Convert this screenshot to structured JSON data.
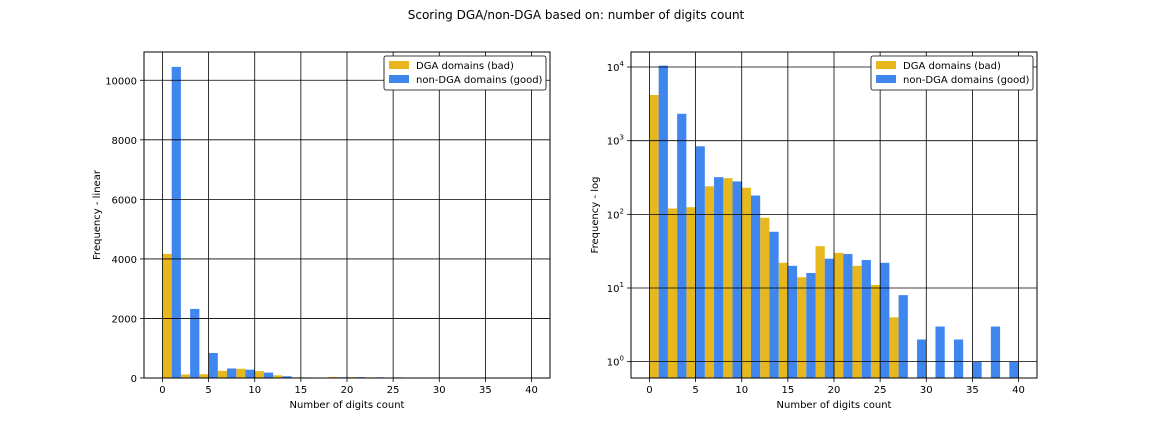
{
  "figure": {
    "title": "Scoring DGA/non-DGA based on: number of digits count",
    "colors": {
      "dga": "#e6b81e",
      "nondga": "#3f86ee"
    }
  },
  "chart_data": [
    {
      "type": "bar",
      "scale": "linear",
      "xlabel": "Number of digits count",
      "ylabel": "Frequency - linear",
      "xlim": [
        -2,
        42
      ],
      "ylim": [
        0,
        10950
      ],
      "xticks": [
        0,
        5,
        10,
        15,
        20,
        25,
        30,
        35,
        40
      ],
      "yticks": [
        0,
        2000,
        4000,
        6000,
        8000,
        10000
      ],
      "grid": true,
      "legend": "top-right",
      "bin_starts": [
        0,
        2,
        4,
        6,
        8,
        10,
        12,
        14,
        16,
        18,
        20,
        22,
        24,
        26,
        28,
        30,
        32,
        34,
        36,
        38
      ],
      "bin_width": 2,
      "series": [
        {
          "name": "DGA domains (bad)",
          "color": "#e6b81e",
          "values": [
            4170,
            120,
            125,
            240,
            310,
            230,
            90,
            22,
            14,
            37,
            30,
            20,
            11,
            4,
            0,
            0,
            0,
            0,
            0,
            0
          ]
        },
        {
          "name": "non-DGA domains (good)",
          "color": "#3f86ee",
          "values": [
            10450,
            2320,
            840,
            320,
            280,
            180,
            58,
            20,
            16,
            25,
            29,
            24,
            22,
            8,
            2,
            3,
            2,
            1,
            3,
            1
          ]
        }
      ]
    },
    {
      "type": "bar",
      "scale": "log",
      "xlabel": "Number of digits count",
      "ylabel": "Frequency - log",
      "xlim": [
        -2,
        42
      ],
      "ylim": [
        0.6,
        16000
      ],
      "xticks": [
        0,
        5,
        10,
        15,
        20,
        25,
        30,
        35,
        40
      ],
      "yticks": [
        1,
        10,
        100,
        1000,
        10000
      ],
      "grid": true,
      "legend": "top-right",
      "bin_starts": [
        0,
        2,
        4,
        6,
        8,
        10,
        12,
        14,
        16,
        18,
        20,
        22,
        24,
        26,
        28,
        30,
        32,
        34,
        36,
        38
      ],
      "bin_width": 2,
      "series": [
        {
          "name": "DGA domains (bad)",
          "color": "#e6b81e",
          "values": [
            4170,
            120,
            125,
            240,
            310,
            230,
            90,
            22,
            14,
            37,
            30,
            20,
            11,
            4,
            0,
            0,
            0,
            0,
            0,
            0
          ]
        },
        {
          "name": "non-DGA domains (good)",
          "color": "#3f86ee",
          "values": [
            10450,
            2320,
            840,
            320,
            280,
            180,
            58,
            20,
            16,
            25,
            29,
            24,
            22,
            8,
            2,
            3,
            2,
            1,
            3,
            1
          ]
        }
      ]
    }
  ]
}
